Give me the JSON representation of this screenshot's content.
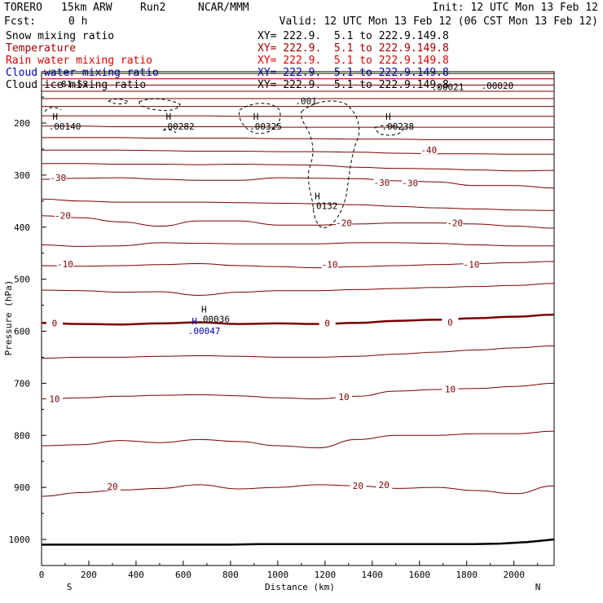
{
  "header": {
    "model": "TORERO",
    "resolution": "15km ARW",
    "run": "Run2",
    "org": "NCAR/MMM",
    "init": "Init: 12 UTC Mon 13 Feb 12",
    "fcst_label": "Fcst:",
    "fcst_value": "0 h",
    "valid": "Valid: 12 UTC Mon 13 Feb 12 (06 CST Mon 13 Feb 12)"
  },
  "fields": [
    {
      "name": "Snow mixing ratio",
      "xy": "XY= 222.9.  5.1 to 222.9.149.8",
      "color": "#000000",
      "xy_color": "#000000"
    },
    {
      "name": "Temperature",
      "xy": "XY= 222.9.  5.1 to 222.9.149.8",
      "color": "#a00000",
      "xy_color": "#a00000"
    },
    {
      "name": "Rain water mixing ratio",
      "xy": "XY= 222.9.  5.1 to 222.9.149.8",
      "color": "#e00000",
      "xy_color": "#e00000"
    },
    {
      "name": "Cloud water mixing ratio",
      "xy": "XY= 222.9.  5.1 to 222.9.149.8",
      "color": "#0000b0",
      "xy_color": "#0000b0"
    },
    {
      "name": "Cloud ice mixing ratio",
      "xy": "XY= 222.9.  5.1 to 222.9.149.8",
      "color": "#000000",
      "xy_color": "#000000"
    }
  ],
  "colors": {
    "temperature": "#7a0000",
    "snow": "#000000",
    "cloud_water": "#0000b0",
    "ground": "#000000"
  },
  "chart_data": {
    "type": "cross-section",
    "xlabel": "Distance (km)",
    "ylabel": "Pressure (hPa)",
    "xlim": [
      0,
      2170
    ],
    "ylim": [
      1050,
      100
    ],
    "x_ticks": [
      0,
      200,
      400,
      600,
      800,
      1000,
      1200,
      1400,
      1600,
      1800,
      2000
    ],
    "y_ticks": [
      200,
      300,
      400,
      500,
      600,
      700,
      800,
      900,
      1000
    ],
    "endpoints": {
      "left": "S",
      "right": "N"
    },
    "temperature_isotherms": [
      {
        "temp": 20,
        "p": [
          917,
          910,
          905,
          902,
          895,
          903,
          900,
          895,
          897,
          902,
          900,
          906,
          912,
          897
        ]
      },
      {
        "temp": 15,
        "p": [
          820,
          818,
          810,
          814,
          808,
          812,
          820,
          824,
          808,
          800,
          800,
          797,
          797,
          792
        ]
      },
      {
        "temp": 10,
        "p": [
          730,
          728,
          725,
          723,
          722,
          724,
          728,
          730,
          725,
          715,
          712,
          710,
          706,
          700
        ]
      },
      {
        "temp": 5,
        "p": [
          652,
          650,
          650,
          648,
          647,
          648,
          650,
          650,
          648,
          644,
          640,
          636,
          632,
          628
        ]
      },
      {
        "temp": 0,
        "p": [
          584,
          586,
          587,
          585,
          583,
          586,
          585,
          586,
          584,
          580,
          578,
          575,
          572,
          568
        ]
      },
      {
        "temp": -5,
        "p": [
          521,
          522,
          525,
          524,
          531,
          525,
          522,
          522,
          520,
          518,
          516,
          514,
          512,
          508
        ]
      },
      {
        "temp": -10,
        "p": [
          474,
          475,
          474,
          472,
          470,
          474,
          476,
          478,
          476,
          474,
          472,
          470,
          468,
          466
        ]
      },
      {
        "temp": -15,
        "p": [
          434,
          437,
          436,
          430,
          431,
          432,
          432,
          432,
          430,
          430,
          431,
          434,
          436,
          436
        ]
      },
      {
        "temp": -20,
        "p": [
          378,
          382,
          390,
          398,
          388,
          388,
          396,
          396,
          394,
          392,
          392,
          394,
          398,
          402
        ]
      },
      {
        "temp": -25,
        "p": [
          346,
          350,
          352,
          352,
          352,
          353,
          354,
          355,
          357,
          360,
          363,
          365,
          367,
          368
        ]
      },
      {
        "temp": -30,
        "p": [
          308,
          306,
          305,
          308,
          310,
          310,
          305,
          306,
          307,
          311,
          313,
          320,
          320,
          325
        ]
      },
      {
        "temp": -35,
        "p": [
          278,
          278,
          279,
          279,
          280,
          279,
          280,
          281,
          285,
          287,
          288,
          290,
          292,
          291
        ]
      },
      {
        "temp": -40,
        "p": [
          252,
          252,
          252,
          253,
          254,
          254,
          255,
          255,
          256,
          258,
          259,
          259,
          260,
          260
        ]
      },
      {
        "temp": -45,
        "p": [
          228,
          228,
          228,
          229,
          229,
          229,
          230,
          230,
          231,
          231,
          232,
          232,
          232,
          232
        ]
      },
      {
        "temp": -50,
        "p": [
          206,
          206,
          207,
          207,
          207,
          207,
          208,
          208,
          208,
          208,
          208,
          208,
          208,
          208
        ]
      },
      {
        "temp": -55,
        "p": [
          186,
          186,
          186,
          186,
          186,
          187,
          187,
          187,
          187,
          187,
          187,
          187,
          187,
          187
        ]
      },
      {
        "temp": -60,
        "p": [
          168,
          168,
          168,
          168,
          168,
          168,
          168,
          168,
          168,
          168,
          168,
          168,
          168,
          168
        ]
      },
      {
        "temp": -65,
        "p": [
          153,
          153,
          153,
          153,
          153,
          153,
          153,
          153,
          153,
          153,
          153,
          153,
          153,
          153
        ]
      },
      {
        "temp": -70,
        "p": [
          139,
          139,
          139,
          139,
          139,
          139,
          139,
          139,
          139,
          139,
          139,
          139,
          139,
          139
        ]
      },
      {
        "temp": -75,
        "p": [
          127,
          127,
          127,
          127,
          127,
          127,
          127,
          127,
          127,
          127,
          127,
          127,
          127,
          127
        ]
      },
      {
        "temp": -80,
        "p": [
          115,
          115,
          115,
          115,
          115,
          115,
          115,
          115,
          115,
          115,
          115,
          115,
          115,
          115
        ]
      },
      {
        "temp": -85,
        "p": [
          105,
          105,
          105,
          105,
          105,
          105,
          105,
          105,
          105,
          105,
          105,
          105,
          105,
          105
        ]
      }
    ],
    "isotherm_x": [
      0,
      167,
      334,
      501,
      668,
      835,
      1002,
      1169,
      1336,
      1503,
      1670,
      1837,
      2004,
      2170
    ],
    "contour_labels": [
      {
        "text": "-30",
        "x": 70,
        "p": 305
      },
      {
        "text": "-30",
        "x": 1440,
        "p": 314
      },
      {
        "text": "-30",
        "x": 1560,
        "p": 315
      },
      {
        "text": "-40",
        "x": 1640,
        "p": 252
      },
      {
        "text": "-20",
        "x": 90,
        "p": 378
      },
      {
        "text": "-20",
        "x": 1280,
        "p": 392
      },
      {
        "text": "-20",
        "x": 1750,
        "p": 392
      },
      {
        "text": "-10",
        "x": 100,
        "p": 471
      },
      {
        "text": "-10",
        "x": 1220,
        "p": 472
      },
      {
        "text": "-10",
        "x": 1820,
        "p": 472
      },
      {
        "text": "0",
        "x": 55,
        "p": 584
      },
      {
        "text": "0",
        "x": 1210,
        "p": 584
      },
      {
        "text": "0",
        "x": 1730,
        "p": 583
      },
      {
        "text": "10",
        "x": 55,
        "p": 730
      },
      {
        "text": "10",
        "x": 1280,
        "p": 726
      },
      {
        "text": "10",
        "x": 1730,
        "p": 711
      },
      {
        "text": "20",
        "x": 300,
        "p": 898
      },
      {
        "text": "20",
        "x": 1340,
        "p": 897
      },
      {
        "text": "20",
        "x": 1450,
        "p": 895
      }
    ],
    "highs": [
      {
        "label": ".00140",
        "x": 30,
        "p": 200,
        "color": "#000000"
      },
      {
        "label": ".00282",
        "x": 510,
        "p": 200,
        "color": "#000000"
      },
      {
        "label": ".00325",
        "x": 880,
        "p": 200,
        "color": "#000000"
      },
      {
        "label": ".00238",
        "x": 1440,
        "p": 200,
        "color": "#000000"
      },
      {
        "label": ".0132",
        "x": 1140,
        "p": 353,
        "color": "#000000"
      },
      {
        "label": ".00036",
        "x": 660,
        "p": 570,
        "color": "#000000"
      },
      {
        "label": ".00047",
        "x": 620,
        "p": 593,
        "color": "#0000b0"
      }
    ],
    "line_labels": [
      {
        "text": ".001",
        "x": 1120,
        "p": 158,
        "color": "#000000"
      },
      {
        "text": ".00021",
        "x": 1720,
        "p": 130,
        "color": "#000000"
      },
      {
        "text": ".00020",
        "x": 1930,
        "p": 128,
        "color": "#000000"
      },
      {
        "text": "81.53",
        "x": 140,
        "p": 125,
        "color": "#000000"
      }
    ],
    "ground_pressure": [
      1010,
      1010,
      1010,
      1010,
      1010,
      1010,
      1010,
      1010,
      1009,
      1009,
      1009,
      1009,
      1009,
      1009,
      1009,
      1009,
      1009,
      1008,
      1005,
      1000
    ]
  }
}
